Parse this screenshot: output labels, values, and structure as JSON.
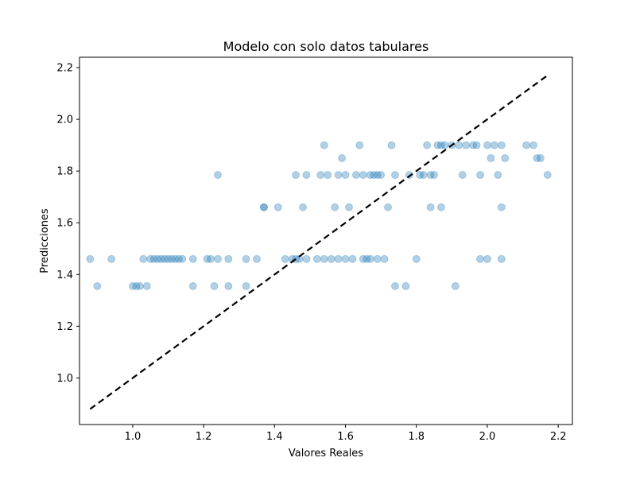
{
  "chart_data": {
    "type": "scatter",
    "title": "Modelo con solo datos tabulares",
    "xlabel": "Valores Reales",
    "ylabel": "Predicciones",
    "xlim": [
      0.85,
      2.24
    ],
    "ylim": [
      0.82,
      2.24
    ],
    "xticks": [
      "1.0",
      "1.2",
      "1.4",
      "1.6",
      "1.8",
      "2.0",
      "2.2"
    ],
    "yticks": [
      "1.0",
      "1.2",
      "1.4",
      "1.6",
      "1.8",
      "2.0",
      "2.2"
    ],
    "grid": false,
    "point_color": "#1f77b4",
    "point_alpha": 0.35,
    "reference_line": {
      "x": [
        0.88,
        2.17
      ],
      "y": [
        0.88,
        2.17
      ],
      "style": "dashed",
      "color": "#000000"
    },
    "points": [
      [
        0.88,
        1.46
      ],
      [
        0.9,
        1.355
      ],
      [
        0.94,
        1.46
      ],
      [
        1.0,
        1.355
      ],
      [
        1.01,
        1.355
      ],
      [
        1.02,
        1.355
      ],
      [
        1.03,
        1.46
      ],
      [
        1.04,
        1.355
      ],
      [
        1.05,
        1.46
      ],
      [
        1.06,
        1.46
      ],
      [
        1.07,
        1.46
      ],
      [
        1.08,
        1.46
      ],
      [
        1.09,
        1.46
      ],
      [
        1.1,
        1.46
      ],
      [
        1.11,
        1.46
      ],
      [
        1.12,
        1.46
      ],
      [
        1.13,
        1.46
      ],
      [
        1.14,
        1.46
      ],
      [
        1.17,
        1.46
      ],
      [
        1.17,
        1.355
      ],
      [
        1.21,
        1.46
      ],
      [
        1.22,
        1.46
      ],
      [
        1.23,
        1.355
      ],
      [
        1.24,
        1.46
      ],
      [
        1.24,
        1.785
      ],
      [
        1.27,
        1.46
      ],
      [
        1.27,
        1.355
      ],
      [
        1.32,
        1.46
      ],
      [
        1.32,
        1.355
      ],
      [
        1.35,
        1.46
      ],
      [
        1.37,
        1.66
      ],
      [
        1.37,
        1.66
      ],
      [
        1.41,
        1.66
      ],
      [
        1.43,
        1.46
      ],
      [
        1.45,
        1.46
      ],
      [
        1.46,
        1.46
      ],
      [
        1.46,
        1.785
      ],
      [
        1.47,
        1.46
      ],
      [
        1.48,
        1.66
      ],
      [
        1.49,
        1.785
      ],
      [
        1.49,
        1.46
      ],
      [
        1.52,
        1.46
      ],
      [
        1.53,
        1.785
      ],
      [
        1.54,
        1.9
      ],
      [
        1.54,
        1.46
      ],
      [
        1.55,
        1.785
      ],
      [
        1.56,
        1.46
      ],
      [
        1.57,
        1.66
      ],
      [
        1.58,
        1.46
      ],
      [
        1.58,
        1.785
      ],
      [
        1.59,
        1.85
      ],
      [
        1.6,
        1.785
      ],
      [
        1.6,
        1.46
      ],
      [
        1.61,
        1.66
      ],
      [
        1.62,
        1.46
      ],
      [
        1.63,
        1.785
      ],
      [
        1.64,
        1.9
      ],
      [
        1.65,
        1.785
      ],
      [
        1.65,
        1.46
      ],
      [
        1.66,
        1.46
      ],
      [
        1.67,
        1.46
      ],
      [
        1.67,
        1.785
      ],
      [
        1.68,
        1.785
      ],
      [
        1.69,
        1.785
      ],
      [
        1.69,
        1.46
      ],
      [
        1.7,
        1.785
      ],
      [
        1.71,
        1.46
      ],
      [
        1.72,
        1.66
      ],
      [
        1.73,
        1.9
      ],
      [
        1.74,
        1.785
      ],
      [
        1.74,
        1.355
      ],
      [
        1.77,
        1.355
      ],
      [
        1.78,
        1.785
      ],
      [
        1.8,
        1.46
      ],
      [
        1.81,
        1.785
      ],
      [
        1.82,
        1.785
      ],
      [
        1.83,
        1.9
      ],
      [
        1.84,
        1.66
      ],
      [
        1.84,
        1.785
      ],
      [
        1.85,
        1.785
      ],
      [
        1.86,
        1.9
      ],
      [
        1.87,
        1.9
      ],
      [
        1.87,
        1.66
      ],
      [
        1.88,
        1.9
      ],
      [
        1.9,
        1.9
      ],
      [
        1.91,
        1.355
      ],
      [
        1.92,
        1.9
      ],
      [
        1.93,
        1.785
      ],
      [
        1.94,
        1.9
      ],
      [
        1.96,
        1.9
      ],
      [
        1.97,
        1.9
      ],
      [
        1.98,
        1.785
      ],
      [
        1.98,
        1.46
      ],
      [
        2.0,
        1.46
      ],
      [
        2.0,
        1.9
      ],
      [
        2.01,
        1.85
      ],
      [
        2.02,
        1.9
      ],
      [
        2.03,
        1.785
      ],
      [
        2.04,
        1.9
      ],
      [
        2.04,
        1.66
      ],
      [
        2.04,
        1.46
      ],
      [
        2.05,
        1.85
      ],
      [
        2.11,
        1.9
      ],
      [
        2.13,
        1.9
      ],
      [
        2.14,
        1.85
      ],
      [
        2.15,
        1.85
      ],
      [
        2.17,
        1.785
      ]
    ]
  }
}
